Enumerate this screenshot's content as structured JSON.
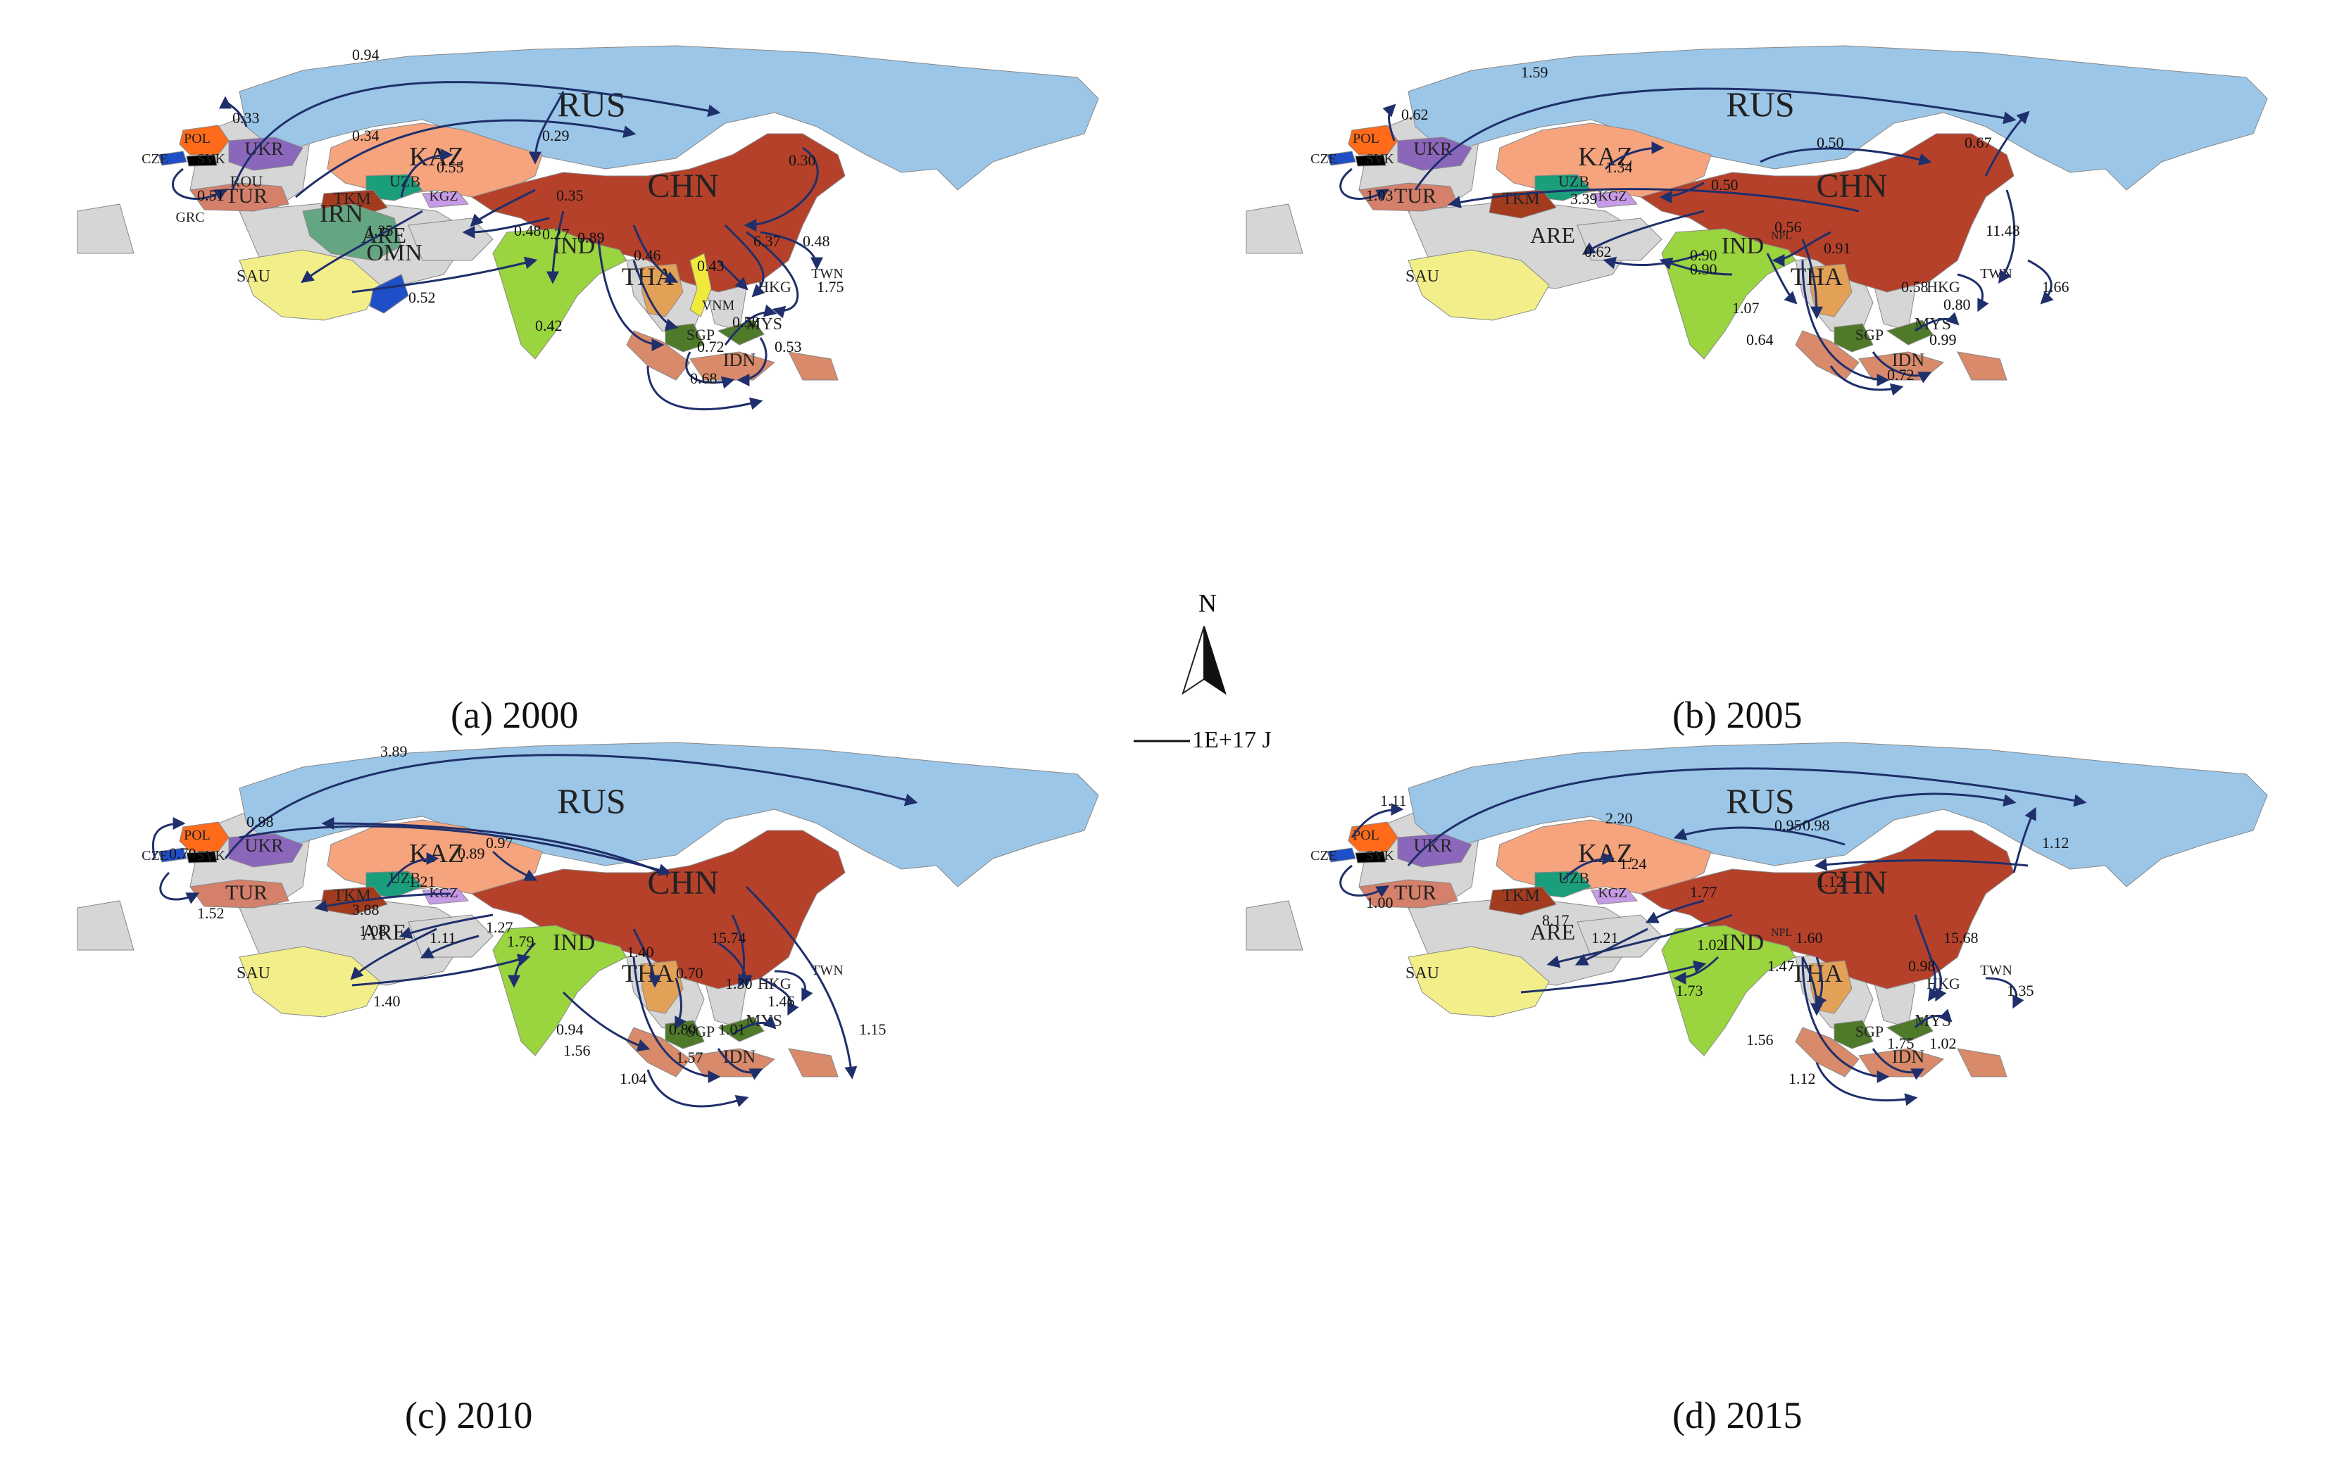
{
  "colors": {
    "ocean": "#ffffff",
    "land_default": "#d6d6d6",
    "RUS": "#9bc6e8",
    "CHN": "#b5412b",
    "KAZ": "#f5a47e",
    "IND": "#9ad43e",
    "SAU": "#f2ef8a",
    "TUR": "#d4806a",
    "UKR": "#8b67bb",
    "POL": "#ff6b1a",
    "CZE": "#1f4fc7",
    "TKM": "#a33b1f",
    "UZB": "#1a9e7b",
    "KGZ": "#c79be6",
    "THA": "#e3a158",
    "IRN": "#64a582",
    "OMN": "#1f4fc7",
    "IDN": "#d98a6a",
    "MYS_SGP": "#4e7a2a",
    "VNM": "#f0ea3c",
    "flow": "#1f2f6b"
  },
  "country_labels": [
    "RUS",
    "CHN",
    "KAZ",
    "IND",
    "TUR",
    "UKR",
    "POL",
    "CZE",
    "SVK",
    "UZB",
    "TKM",
    "KGZ",
    "SAU",
    "ARE",
    "THA",
    "HKG",
    "TWN",
    "SGP",
    "MYS",
    "IDN"
  ],
  "extra_labels_2000": [
    "ROU",
    "GRC",
    "IRN",
    "OMN",
    "VNM"
  ],
  "extra_labels_2005_2015": [
    "NPL"
  ],
  "panels": [
    {
      "caption": "(a) 2000",
      "values": [
        "0.94",
        "0.33",
        "0.34",
        "0.29",
        "0.30",
        "0.55",
        "0.51",
        "0.35",
        "1.25",
        "0.48",
        "0.27",
        "0.89",
        "6.37",
        "0.48",
        "0.46",
        "0.43",
        "1.75",
        "0.52",
        "0.42",
        "0.58",
        "0.72",
        "0.53",
        "0.68"
      ]
    },
    {
      "caption": "(b) 2005",
      "values": [
        "1.59",
        "0.62",
        "0.50",
        "0.67",
        "1.34",
        "0.50",
        "1.03",
        "3.39",
        "0.56",
        "11.48",
        "0.62",
        "0.90",
        "0.90",
        "0.91",
        "0.58",
        "1.66",
        "1.07",
        "0.64",
        "0.80",
        "0.99",
        "0.72"
      ]
    },
    {
      "caption": "(c) 2010",
      "values": [
        "3.89",
        "0.70",
        "0.98",
        "0.97",
        "0.89",
        "1.21",
        "1.52",
        "3.88",
        "1.27",
        "1.08",
        "1.11",
        "1.79",
        "1.40",
        "15.74",
        "0.70",
        "1.30",
        "1.46",
        "1.40",
        "0.94",
        "0.80",
        "1.15",
        "1.56",
        "1.01",
        "1.57",
        "1.04"
      ]
    },
    {
      "caption": "(d) 2015",
      "values": [
        "2.20",
        "0.95",
        "1.11",
        "1.12",
        "0.98",
        "1.24",
        "1.00",
        "1.12",
        "1.77",
        "8.17",
        "1.21",
        "1.02",
        "1.60",
        "15.68",
        "1.47",
        "0.98",
        "1.35",
        "1.73",
        "1.56",
        "1.02",
        "1.75",
        "1.12"
      ]
    }
  ],
  "north_label": "N",
  "scale_label": "1E+17 J"
}
